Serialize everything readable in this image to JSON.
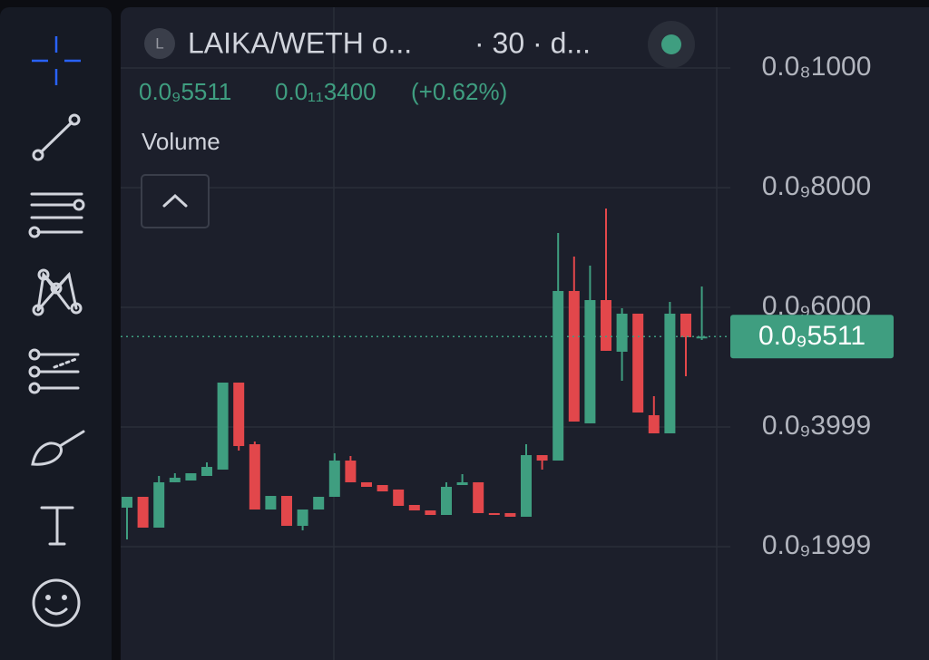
{
  "header": {
    "icon_letter": "L",
    "symbol": "LAIKA/WETH o...",
    "interval": "· 30 · d...",
    "price": "0.0₉5511",
    "change": "0.0₁₁3400",
    "change_pct": "(+0.62%)"
  },
  "indicator": "Volume",
  "chart_data": {
    "type": "candlestick",
    "open": [
      2.652e-10,
      2.833e-10,
      2.318e-10,
      3.076e-10,
      3.106e-10,
      3.182e-10,
      3.288e-10,
      4.742e-10,
      3.712e-10,
      2.621e-10,
      2.848e-10,
      2.348e-10,
      2.621e-10,
      2.833e-10,
      3.439e-10,
      3.076e-10,
      3.03e-10,
      2.955e-10,
      2.697e-10,
      2.606e-10,
      2.53e-10,
      3.03e-10,
      3.076e-10,
      2.561e-10,
      2.561e-10,
      2.5e-10,
      3.53e-10,
      3.439e-10,
      6.273e-10,
      4.061e-10,
      6.121e-10,
      5.258e-10,
      5.894e-10,
      4.197e-10,
      3.894e-10,
      5.894e-10,
      5.485e-10
    ],
    "high": [
      2.833e-10,
      2.833e-10,
      3.182e-10,
      3.227e-10,
      3.227e-10,
      3.409e-10,
      4.742e-10,
      4.742e-10,
      3.758e-10,
      2.848e-10,
      2.848e-10,
      2.621e-10,
      2.833e-10,
      3.561e-10,
      3.515e-10,
      3.076e-10,
      3.03e-10,
      2.955e-10,
      2.697e-10,
      2.606e-10,
      3.076e-10,
      3.212e-10,
      3.076e-10,
      2.561e-10,
      2.561e-10,
      3.712e-10,
      3.53e-10,
      7.242e-10,
      6.848e-10,
      6.697e-10,
      7.652e-10,
      5.985e-10,
      5.894e-10,
      4.515e-10,
      6.091e-10,
      5.894e-10,
      6.348e-10
    ],
    "low": [
      2.121e-10,
      2.318e-10,
      2.318e-10,
      3.076e-10,
      3.106e-10,
      3.182e-10,
      3.288e-10,
      3.606e-10,
      2.621e-10,
      2.621e-10,
      2.348e-10,
      2.273e-10,
      2.621e-10,
      2.833e-10,
      3.076e-10,
      3e-10,
      2.924e-10,
      2.682e-10,
      2.606e-10,
      2.53e-10,
      2.53e-10,
      3.03e-10,
      2.561e-10,
      2.53e-10,
      2.5e-10,
      2.5e-10,
      3.288e-10,
      3.439e-10,
      4.091e-10,
      4.061e-10,
      5.273e-10,
      4.773e-10,
      4.242e-10,
      3.894e-10,
      3.894e-10,
      4.848e-10,
      5.455e-10
    ],
    "close": [
      2.833e-10,
      2.318e-10,
      3.076e-10,
      3.152e-10,
      3.227e-10,
      3.333e-10,
      4.742e-10,
      3.682e-10,
      2.621e-10,
      2.848e-10,
      2.348e-10,
      2.621e-10,
      2.833e-10,
      3.439e-10,
      3.076e-10,
      3e-10,
      2.924e-10,
      2.682e-10,
      2.606e-10,
      2.53e-10,
      3e-10,
      3.076e-10,
      2.561e-10,
      2.53e-10,
      2.5e-10,
      3.53e-10,
      3.439e-10,
      6.273e-10,
      4.091e-10,
      6.121e-10,
      5.273e-10,
      5.894e-10,
      4.242e-10,
      3.894e-10,
      5.894e-10,
      5.5e-10,
      5.511e-10
    ],
    "up_color": "#3f9e80",
    "down_color": "#e2474b",
    "ylim": [
      1.06e-11,
      1.1136e-09
    ],
    "yticks": [
      {
        "value": 1e-09,
        "label": "0.0₈1000"
      },
      {
        "value": 8e-10,
        "label": "0.0₉8000"
      },
      {
        "value": 6e-10,
        "label": "0.0₉6000"
      },
      {
        "value": 3.999e-10,
        "label": "0.0₉3999"
      },
      {
        "value": 1.999e-10,
        "label": "0.0₉1999"
      }
    ],
    "grid": true,
    "last_price": {
      "value": 5.511e-10,
      "label": "0.0₉5511"
    }
  }
}
